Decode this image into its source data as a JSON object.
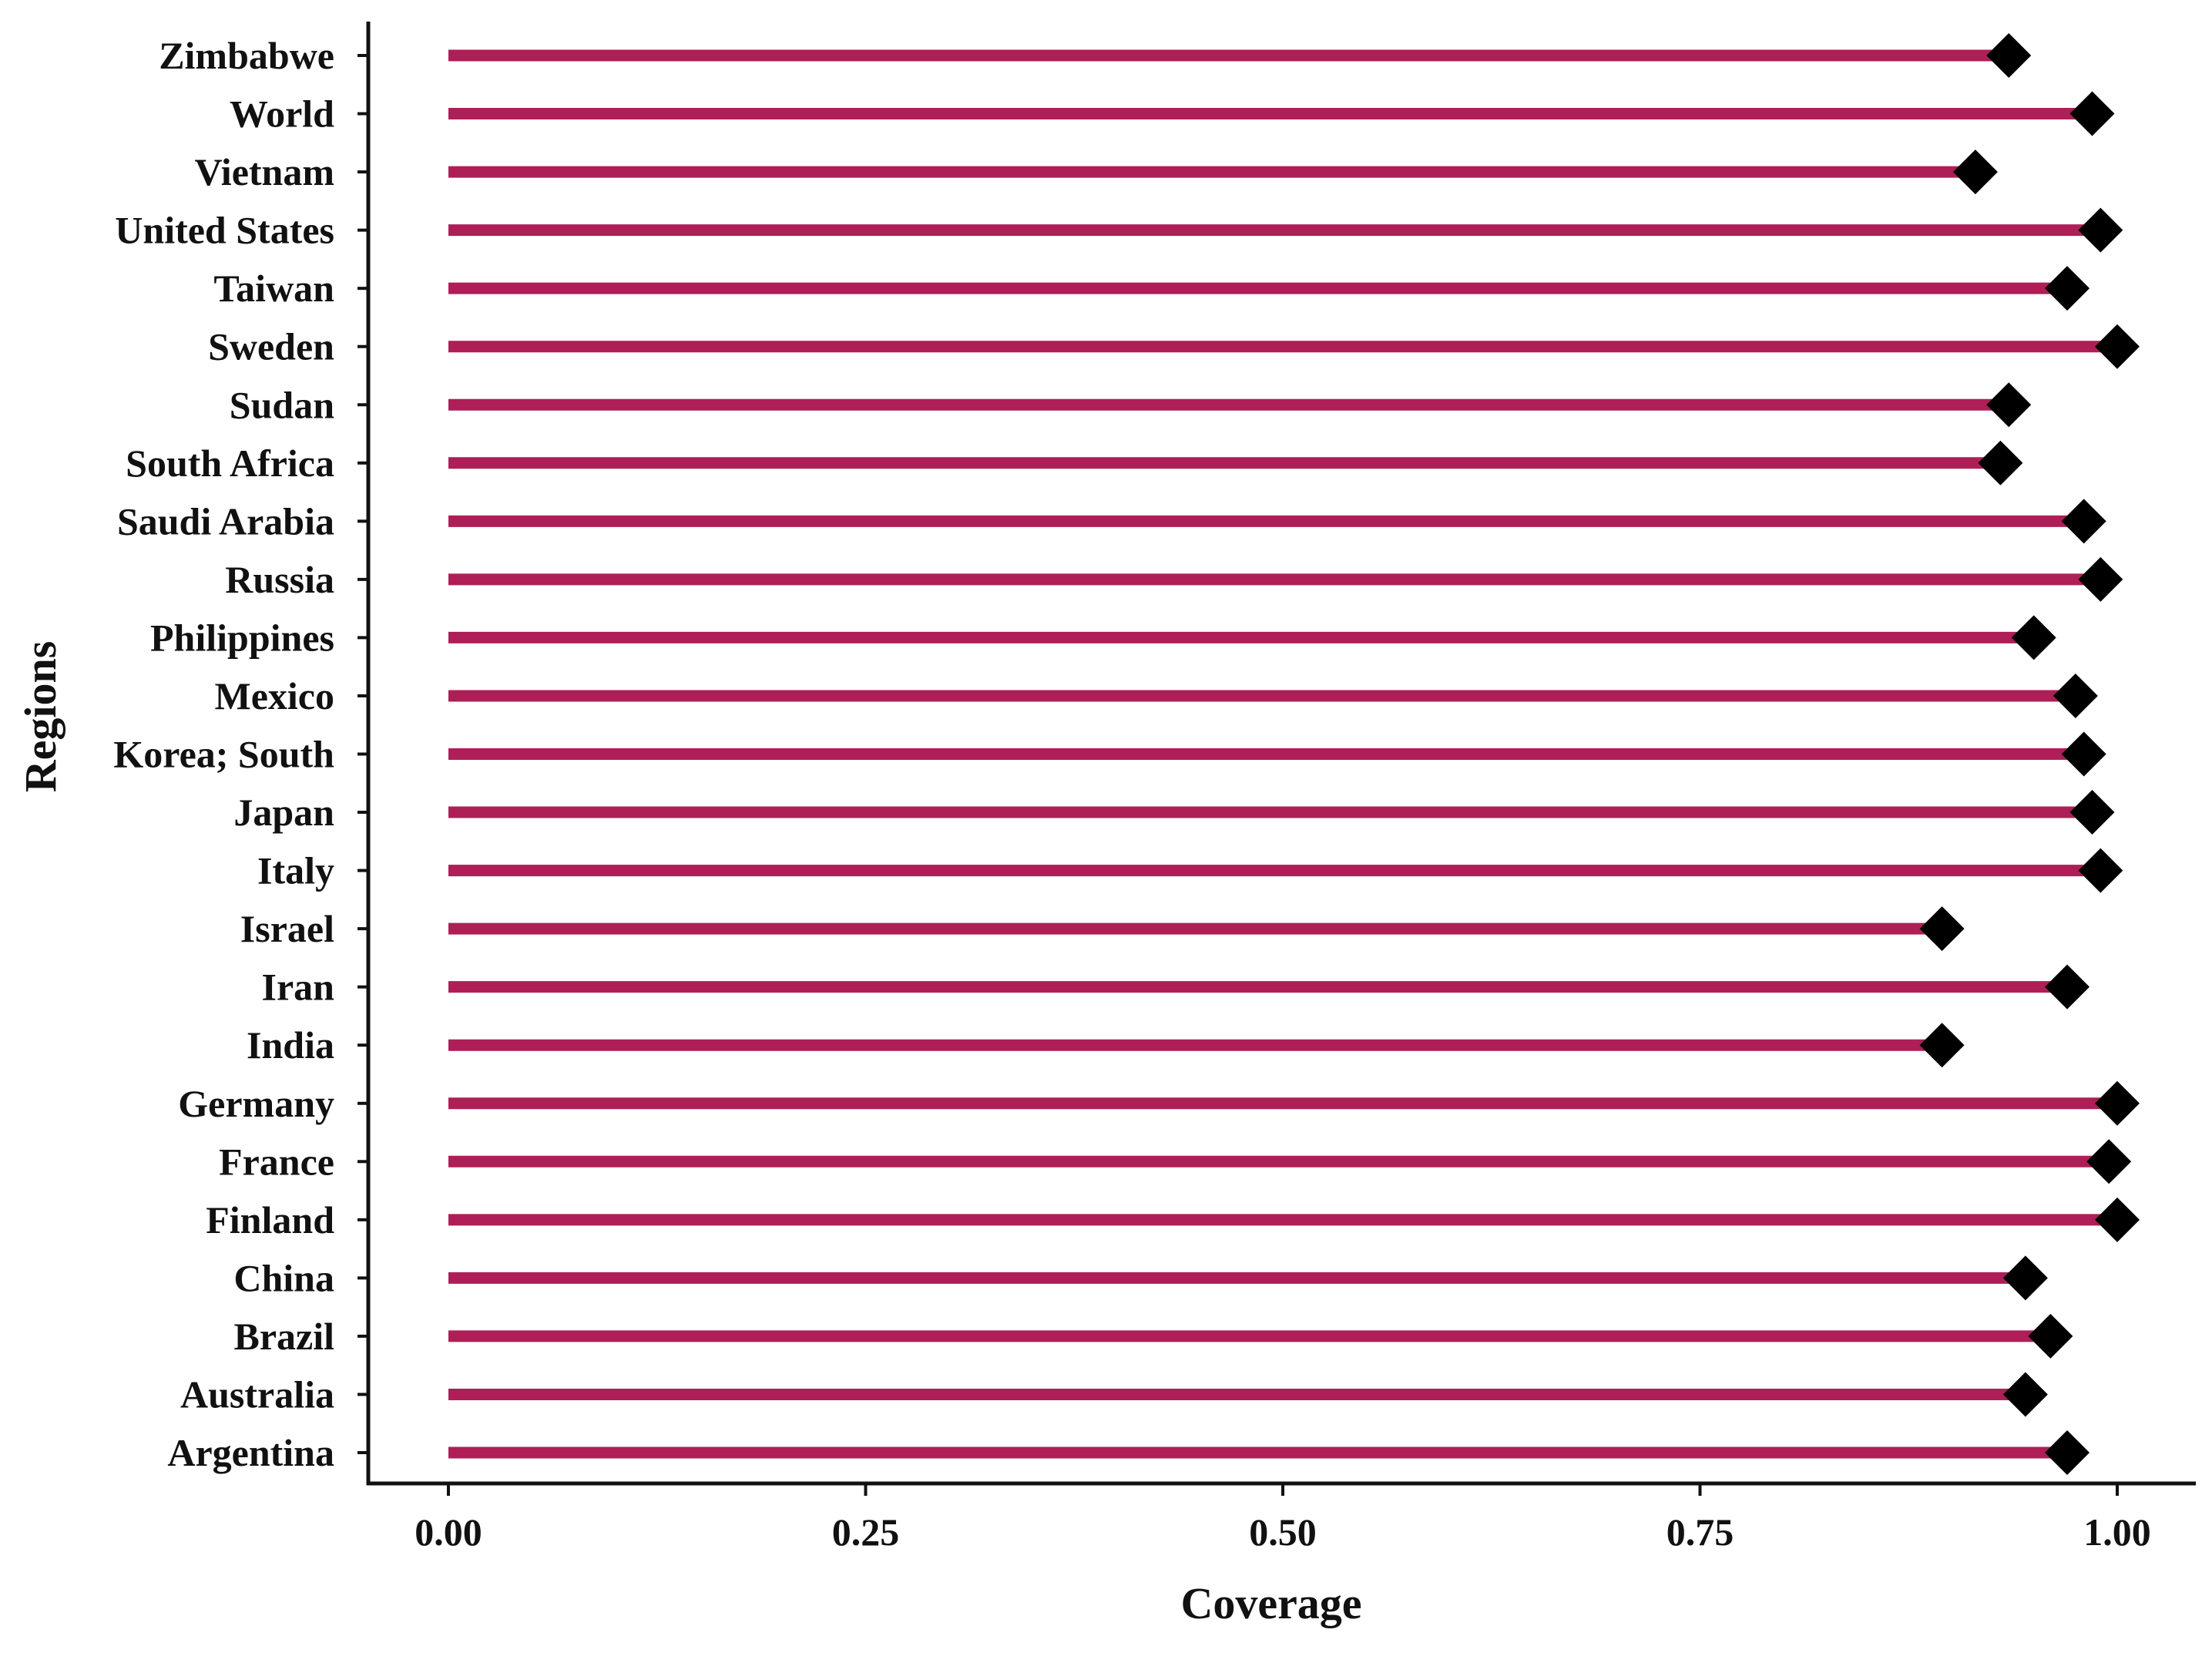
{
  "chart_data": {
    "type": "lollipop",
    "xlabel": "Coverage",
    "ylabel": "Regions",
    "xlim": [
      -0.1,
      1.04
    ],
    "xticks": [
      0,
      0.25,
      0.5,
      0.75,
      1.0
    ],
    "xtick_labels": [
      "0.00",
      "0.25",
      "0.50",
      "0.75",
      "1.00"
    ],
    "categories": [
      "Zimbabwe",
      "World",
      "Vietnam",
      "United States",
      "Taiwan",
      "Sweden",
      "Sudan",
      "South Africa",
      "Saudi Arabia",
      "Russia",
      "Philippines",
      "Mexico",
      "Korea; South",
      "Japan",
      "Italy",
      "Israel",
      "Iran",
      "India",
      "Germany",
      "France",
      "Finland",
      "China",
      "Brazil",
      "Australia",
      "Argentina"
    ],
    "values": [
      0.935,
      0.985,
      0.915,
      0.99,
      0.97,
      1.0,
      0.935,
      0.93,
      0.98,
      0.99,
      0.95,
      0.975,
      0.98,
      0.985,
      0.99,
      0.895,
      0.97,
      0.895,
      1.0,
      0.995,
      1.0,
      0.945,
      0.96,
      0.945,
      0.97
    ],
    "grid": false,
    "colors": {
      "stem": "#ad1f56",
      "marker": "#000000",
      "axis": "#111111"
    }
  }
}
